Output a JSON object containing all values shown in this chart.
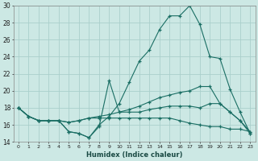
{
  "xlabel": "Humidex (Indice chaleur)",
  "bg_color": "#cce8e4",
  "grid_color": "#aacfcb",
  "line_color": "#1a6e64",
  "xlim": [
    -0.5,
    23.5
  ],
  "ylim": [
    14,
    30
  ],
  "yticks": [
    14,
    16,
    18,
    20,
    22,
    24,
    26,
    28,
    30
  ],
  "xticks": [
    0,
    1,
    2,
    3,
    4,
    5,
    6,
    7,
    8,
    9,
    10,
    11,
    12,
    13,
    14,
    15,
    16,
    17,
    18,
    19,
    20,
    21,
    22,
    23
  ],
  "line1_x": [
    0,
    1,
    2,
    3,
    4,
    5,
    6,
    7,
    8,
    9,
    10,
    11,
    12,
    13,
    14,
    15,
    16,
    17,
    18,
    19,
    20,
    21,
    22,
    23
  ],
  "line1_y": [
    18,
    17,
    16.5,
    16.5,
    16.5,
    15.2,
    15.0,
    14.5,
    16.0,
    17.0,
    18.5,
    21.0,
    23.5,
    24.8,
    27.2,
    28.8,
    28.8,
    30.0,
    27.8,
    24.0,
    23.8,
    20.2,
    17.5,
    15.0
  ],
  "line2_x": [
    0,
    1,
    2,
    3,
    4,
    5,
    6,
    7,
    8,
    9,
    10,
    11,
    12,
    13,
    14,
    15,
    16,
    17,
    18,
    19,
    20,
    21,
    22,
    23
  ],
  "line2_y": [
    18,
    17,
    16.5,
    16.5,
    16.5,
    15.2,
    15.0,
    14.5,
    15.8,
    21.2,
    17.5,
    17.5,
    17.5,
    17.8,
    18.0,
    18.2,
    18.2,
    18.2,
    18.0,
    18.5,
    18.5,
    17.5,
    16.5,
    15.0
  ],
  "line3_x": [
    0,
    1,
    2,
    3,
    4,
    5,
    6,
    7,
    8,
    9,
    10,
    11,
    12,
    13,
    14,
    15,
    16,
    17,
    18,
    19,
    20,
    21,
    22,
    23
  ],
  "line3_y": [
    18,
    17,
    16.5,
    16.5,
    16.5,
    16.3,
    16.5,
    16.8,
    17.0,
    17.2,
    17.5,
    17.8,
    18.2,
    18.7,
    19.2,
    19.5,
    19.8,
    20.0,
    20.5,
    20.5,
    18.5,
    17.5,
    16.5,
    15.2
  ],
  "line4_x": [
    0,
    1,
    2,
    3,
    4,
    5,
    6,
    7,
    8,
    9,
    10,
    11,
    12,
    13,
    14,
    15,
    16,
    17,
    18,
    19,
    20,
    21,
    22,
    23
  ],
  "line4_y": [
    18,
    17,
    16.5,
    16.5,
    16.5,
    16.3,
    16.5,
    16.8,
    16.8,
    16.8,
    16.8,
    16.8,
    16.8,
    16.8,
    16.8,
    16.8,
    16.5,
    16.2,
    16.0,
    15.8,
    15.8,
    15.5,
    15.5,
    15.2
  ]
}
